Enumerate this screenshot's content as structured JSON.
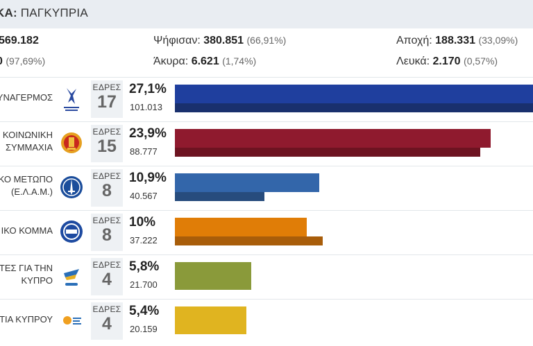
{
  "header": {
    "title_bold": "ΚΑ:",
    "title_rest": " ΠΑΓΚΥΠΡΙΑ"
  },
  "stats": {
    "registered_value": "569.182",
    "valid_value": "0",
    "valid_pct": "(97,69%)",
    "voted_label": "Ψήφισαν:",
    "voted_value": "380.851",
    "voted_pct": "(66,91%)",
    "invalid_label": "Άκυρα:",
    "invalid_value": "6.621",
    "invalid_pct": "(1,74%)",
    "abstain_label": "Αποχή:",
    "abstain_value": "188.331",
    "abstain_pct": "(33,09%)",
    "blank_label": "Λευκά:",
    "blank_value": "2.170",
    "blank_pct": "(0,57%)"
  },
  "seats_label": "ΕΔΡΕΣ",
  "colors": {
    "disy": "#1f3f9e",
    "disy_dark": "#19306d",
    "akel": "#8f1a2e",
    "akel_dark": "#6d1321",
    "elam": "#3366aa",
    "elam_dark": "#274c7d",
    "diko": "#e07d07",
    "diko_dark": "#a85d0a",
    "dipa": "#8a9a3a",
    "dipa_dark": "#6e7b2e",
    "ksp": "#e0b420",
    "ksp_dark": "#b38f19"
  },
  "parties": [
    {
      "name_lines": [
        "ΥΝΑΓΕΡΜΟΣ"
      ],
      "logo_icon": "disy-logo-icon",
      "seats": "17",
      "pct": "27,1%",
      "votes": "101.013",
      "share_current": 27.1,
      "share_previous": 27.1
    },
    {
      "name_lines": [
        "ΚΟΙΝΩΝΙΚΗ",
        "ΣΥΜΜΑΧΙΑ"
      ],
      "logo_icon": "akel-logo-icon",
      "seats": "15",
      "pct": "23,9%",
      "votes": "88.777",
      "share_current": 23.9,
      "share_previous": 23.1
    },
    {
      "name_lines": [
        "ΚΟ ΜΕΤΩΠΟ",
        "(Ε.Λ.Α.Μ.)"
      ],
      "logo_icon": "elam-logo-icon",
      "seats": "8",
      "pct": "10,9%",
      "votes": "40.567",
      "share_current": 10.9,
      "share_previous": 6.8
    },
    {
      "name_lines": [
        "ΙΚΟ ΚΟΜΜΑ"
      ],
      "logo_icon": "diko-logo-icon",
      "seats": "8",
      "pct": "10%",
      "votes": "37.222",
      "share_current": 10.0,
      "share_previous": 11.2
    },
    {
      "name_lines": [
        "ΤΕΣ ΓΙΑ ΤΗΝ",
        "ΚΥΠΡΟ"
      ],
      "logo_icon": "dipa-logo-icon",
      "seats": "4",
      "pct": "5,8%",
      "votes": "21.700",
      "share_current": 5.8,
      "share_previous": 0
    },
    {
      "name_lines": [
        "ΤΙΑ ΚΥΠΡΟΥ"
      ],
      "logo_icon": "ksp-logo-icon",
      "seats": "4",
      "pct": "5,4%",
      "votes": "20.159",
      "share_current": 5.4,
      "share_previous": 0
    }
  ]
}
